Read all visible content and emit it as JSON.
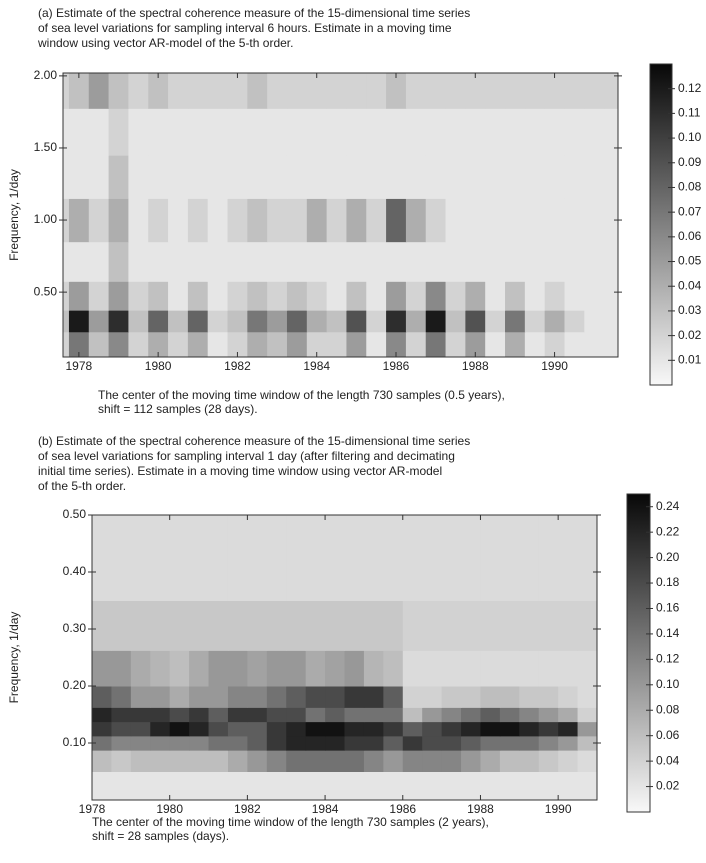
{
  "chart_data": [
    {
      "type": "heatmap",
      "title": [
        "(a) Estimate of the spectral coherence measure of the 15-dimensional time series",
        "of sea level variations for sampling interval 6 hours. Estimate in a moving time",
        "window using vector AR-model of the 5-th order."
      ],
      "xlabel": [
        "The center of  the moving time window of the length 730 samples (0.5 years),",
        "shift = 112 samples (28 days)."
      ],
      "ylabel": "Frequency, 1/day",
      "xlim": [
        1977.6,
        1991.6
      ],
      "xticks": [
        1978,
        1980,
        1982,
        1984,
        1986,
        1988,
        1990
      ],
      "ylim": [
        0.05,
        2.02
      ],
      "yticks": [
        {
          "value": 0.5,
          "label": "0.50"
        },
        {
          "value": 1.0,
          "label": "1.00"
        },
        {
          "value": 1.5,
          "label": "1.50"
        },
        {
          "value": 2.0,
          "label": "2.00"
        }
      ],
      "x": [
        1977.5,
        1978,
        1978.5,
        1979,
        1979.5,
        1980,
        1980.5,
        1981,
        1981.5,
        1982,
        1982.5,
        1983,
        1983.5,
        1984,
        1984.5,
        1985,
        1985.5,
        1986,
        1986.5,
        1987,
        1987.5,
        1988,
        1988.5,
        1989,
        1989.5,
        1990,
        1990.5,
        1991,
        1991.5
      ],
      "y": [
        0.15,
        0.3,
        0.45,
        0.7,
        1.0,
        1.3,
        1.6,
        1.95
      ],
      "z": [
        [
          0.02,
          0.07,
          0.03,
          0.06,
          0.02,
          0.04,
          0.02,
          0.04,
          0.01,
          0.02,
          0.04,
          0.03,
          0.05,
          0.02,
          0.02,
          0.05,
          0.01,
          0.06,
          0.02,
          0.07,
          0.02,
          0.05,
          0.01,
          0.04,
          0.01,
          0.02,
          0.01,
          0.01,
          0.01
        ],
        [
          0.03,
          0.12,
          0.05,
          0.11,
          0.03,
          0.08,
          0.03,
          0.08,
          0.02,
          0.03,
          0.07,
          0.05,
          0.08,
          0.04,
          0.03,
          0.09,
          0.02,
          0.11,
          0.04,
          0.12,
          0.03,
          0.09,
          0.02,
          0.07,
          0.02,
          0.04,
          0.02,
          0.01,
          0.01
        ],
        [
          0.02,
          0.05,
          0.02,
          0.05,
          0.02,
          0.03,
          0.01,
          0.03,
          0.01,
          0.02,
          0.03,
          0.02,
          0.03,
          0.02,
          0.01,
          0.03,
          0.01,
          0.05,
          0.02,
          0.06,
          0.02,
          0.04,
          0.01,
          0.03,
          0.01,
          0.02,
          0.01,
          0.01,
          0.01
        ],
        [
          0.01,
          0.01,
          0.01,
          0.03,
          0.01,
          0.01,
          0.01,
          0.01,
          0.01,
          0.01,
          0.01,
          0.01,
          0.01,
          0.01,
          0.01,
          0.01,
          0.01,
          0.01,
          0.01,
          0.01,
          0.01,
          0.01,
          0.01,
          0.01,
          0.01,
          0.01,
          0.01,
          0.01,
          0.01
        ],
        [
          0.02,
          0.04,
          0.02,
          0.04,
          0.01,
          0.02,
          0.01,
          0.02,
          0.01,
          0.02,
          0.03,
          0.02,
          0.02,
          0.04,
          0.02,
          0.04,
          0.02,
          0.08,
          0.04,
          0.02,
          0.01,
          0.01,
          0.01,
          0.01,
          0.01,
          0.01,
          0.01,
          0.01,
          0.01
        ],
        [
          0.01,
          0.01,
          0.01,
          0.03,
          0.01,
          0.01,
          0.01,
          0.01,
          0.01,
          0.01,
          0.01,
          0.01,
          0.01,
          0.01,
          0.01,
          0.01,
          0.01,
          0.01,
          0.01,
          0.01,
          0.01,
          0.01,
          0.01,
          0.01,
          0.01,
          0.01,
          0.01,
          0.01,
          0.01
        ],
        [
          0.01,
          0.01,
          0.01,
          0.02,
          0.01,
          0.01,
          0.01,
          0.01,
          0.01,
          0.01,
          0.01,
          0.01,
          0.01,
          0.01,
          0.01,
          0.01,
          0.01,
          0.01,
          0.01,
          0.01,
          0.01,
          0.01,
          0.01,
          0.01,
          0.01,
          0.01,
          0.01,
          0.01,
          0.01
        ],
        [
          0.02,
          0.03,
          0.05,
          0.03,
          0.02,
          0.03,
          0.02,
          0.02,
          0.02,
          0.02,
          0.03,
          0.02,
          0.02,
          0.02,
          0.02,
          0.02,
          0.02,
          0.03,
          0.02,
          0.02,
          0.02,
          0.02,
          0.02,
          0.02,
          0.02,
          0.02,
          0.02,
          0.02,
          0.02
        ]
      ],
      "colorbar": {
        "clim": [
          0,
          0.13
        ],
        "ticks": [
          0.01,
          0.02,
          0.03,
          0.04,
          0.05,
          0.06,
          0.07,
          0.08,
          0.09,
          {
            "value": 0.1,
            "label": "0.10"
          },
          0.11,
          0.12
        ]
      }
    },
    {
      "type": "heatmap",
      "title": [
        "(b) Estimate of the spectral coherence measure of the 15-dimensional time series",
        "of sea level variations for sampling interval 1 day (after filtering and decimating",
        "initial time series). Estimate in a moving time window using vector AR-model",
        "of the 5-th order."
      ],
      "xlabel": [
        "The center of  the moving time window of  the length 730 samples (2 years),",
        "shift = 28 samples (days)."
      ],
      "ylabel": "Frequency, 1/day",
      "xlim": [
        1978,
        1991
      ],
      "xticks": [
        1978,
        1980,
        1982,
        1984,
        1986,
        1988,
        1990
      ],
      "ylim": [
        0,
        0.5
      ],
      "yticks": [
        {
          "value": 0.1,
          "label": "0.10"
        },
        {
          "value": 0.2,
          "label": "0.20"
        },
        {
          "value": 0.3,
          "label": "0.30"
        },
        {
          "value": 0.4,
          "label": "0.40"
        },
        {
          "value": 0.5,
          "label": "0.50"
        }
      ],
      "x": [
        1978.25,
        1978.75,
        1979.25,
        1979.75,
        1980.25,
        1980.75,
        1981.25,
        1981.75,
        1982.25,
        1982.75,
        1983.25,
        1983.75,
        1984.25,
        1984.75,
        1985.25,
        1985.75,
        1986.25,
        1986.75,
        1987.25,
        1987.75,
        1988.25,
        1988.75,
        1989.25,
        1989.75,
        1990.25,
        1990.75
      ],
      "y": [
        0.025,
        0.075,
        0.1,
        0.125,
        0.15,
        0.175,
        0.225,
        0.3,
        0.4,
        0.475
      ],
      "z": [
        [
          0.02,
          0.02,
          0.02,
          0.02,
          0.02,
          0.02,
          0.02,
          0.02,
          0.02,
          0.02,
          0.02,
          0.02,
          0.02,
          0.02,
          0.02,
          0.02,
          0.02,
          0.02,
          0.02,
          0.02,
          0.02,
          0.02,
          0.02,
          0.02,
          0.02,
          0.02
        ],
        [
          0.06,
          0.05,
          0.06,
          0.06,
          0.06,
          0.06,
          0.06,
          0.08,
          0.1,
          0.12,
          0.14,
          0.14,
          0.14,
          0.14,
          0.12,
          0.1,
          0.12,
          0.12,
          0.12,
          0.1,
          0.08,
          0.06,
          0.06,
          0.05,
          0.04,
          0.03
        ],
        [
          0.14,
          0.12,
          0.12,
          0.12,
          0.12,
          0.12,
          0.14,
          0.14,
          0.16,
          0.2,
          0.22,
          0.22,
          0.22,
          0.2,
          0.2,
          0.16,
          0.2,
          0.18,
          0.18,
          0.16,
          0.14,
          0.14,
          0.14,
          0.12,
          0.1,
          0.06
        ],
        [
          0.2,
          0.18,
          0.18,
          0.22,
          0.24,
          0.22,
          0.18,
          0.16,
          0.16,
          0.2,
          0.22,
          0.24,
          0.24,
          0.22,
          0.22,
          0.2,
          0.16,
          0.18,
          0.2,
          0.22,
          0.24,
          0.24,
          0.22,
          0.2,
          0.22,
          0.1
        ],
        [
          0.22,
          0.2,
          0.2,
          0.2,
          0.18,
          0.2,
          0.16,
          0.2,
          0.2,
          0.18,
          0.18,
          0.14,
          0.16,
          0.14,
          0.14,
          0.14,
          0.06,
          0.1,
          0.12,
          0.14,
          0.16,
          0.14,
          0.12,
          0.1,
          0.08,
          0.04
        ],
        [
          0.16,
          0.14,
          0.1,
          0.1,
          0.08,
          0.1,
          0.1,
          0.12,
          0.12,
          0.14,
          0.16,
          0.18,
          0.18,
          0.2,
          0.2,
          0.16,
          0.04,
          0.04,
          0.05,
          0.05,
          0.06,
          0.06,
          0.05,
          0.05,
          0.04,
          0.03
        ],
        [
          0.1,
          0.1,
          0.08,
          0.07,
          0.06,
          0.08,
          0.1,
          0.1,
          0.09,
          0.1,
          0.1,
          0.08,
          0.09,
          0.1,
          0.07,
          0.06,
          0.03,
          0.03,
          0.03,
          0.03,
          0.03,
          0.03,
          0.03,
          0.03,
          0.03,
          0.03
        ],
        [
          0.05,
          0.05,
          0.05,
          0.05,
          0.05,
          0.05,
          0.05,
          0.05,
          0.05,
          0.05,
          0.05,
          0.05,
          0.05,
          0.05,
          0.05,
          0.05,
          0.04,
          0.04,
          0.04,
          0.04,
          0.04,
          0.04,
          0.04,
          0.04,
          0.04,
          0.04
        ],
        [
          0.03,
          0.03,
          0.03,
          0.03,
          0.03,
          0.03,
          0.03,
          0.03,
          0.03,
          0.03,
          0.03,
          0.03,
          0.03,
          0.03,
          0.03,
          0.03,
          0.03,
          0.03,
          0.03,
          0.03,
          0.03,
          0.03,
          0.03,
          0.03,
          0.03,
          0.03
        ],
        [
          0.03,
          0.03,
          0.03,
          0.03,
          0.03,
          0.03,
          0.03,
          0.03,
          0.03,
          0.03,
          0.03,
          0.03,
          0.03,
          0.03,
          0.03,
          0.03,
          0.03,
          0.03,
          0.03,
          0.03,
          0.03,
          0.03,
          0.03,
          0.03,
          0.03,
          0.03
        ]
      ],
      "colorbar": {
        "clim": [
          0,
          0.25
        ],
        "ticks": [
          0.02,
          0.04,
          0.06,
          0.08,
          {
            "value": 0.1,
            "label": "0.10"
          },
          0.12,
          0.14,
          0.16,
          0.18,
          {
            "value": 0.2,
            "label": "0.20"
          },
          0.22,
          0.24
        ]
      }
    }
  ]
}
